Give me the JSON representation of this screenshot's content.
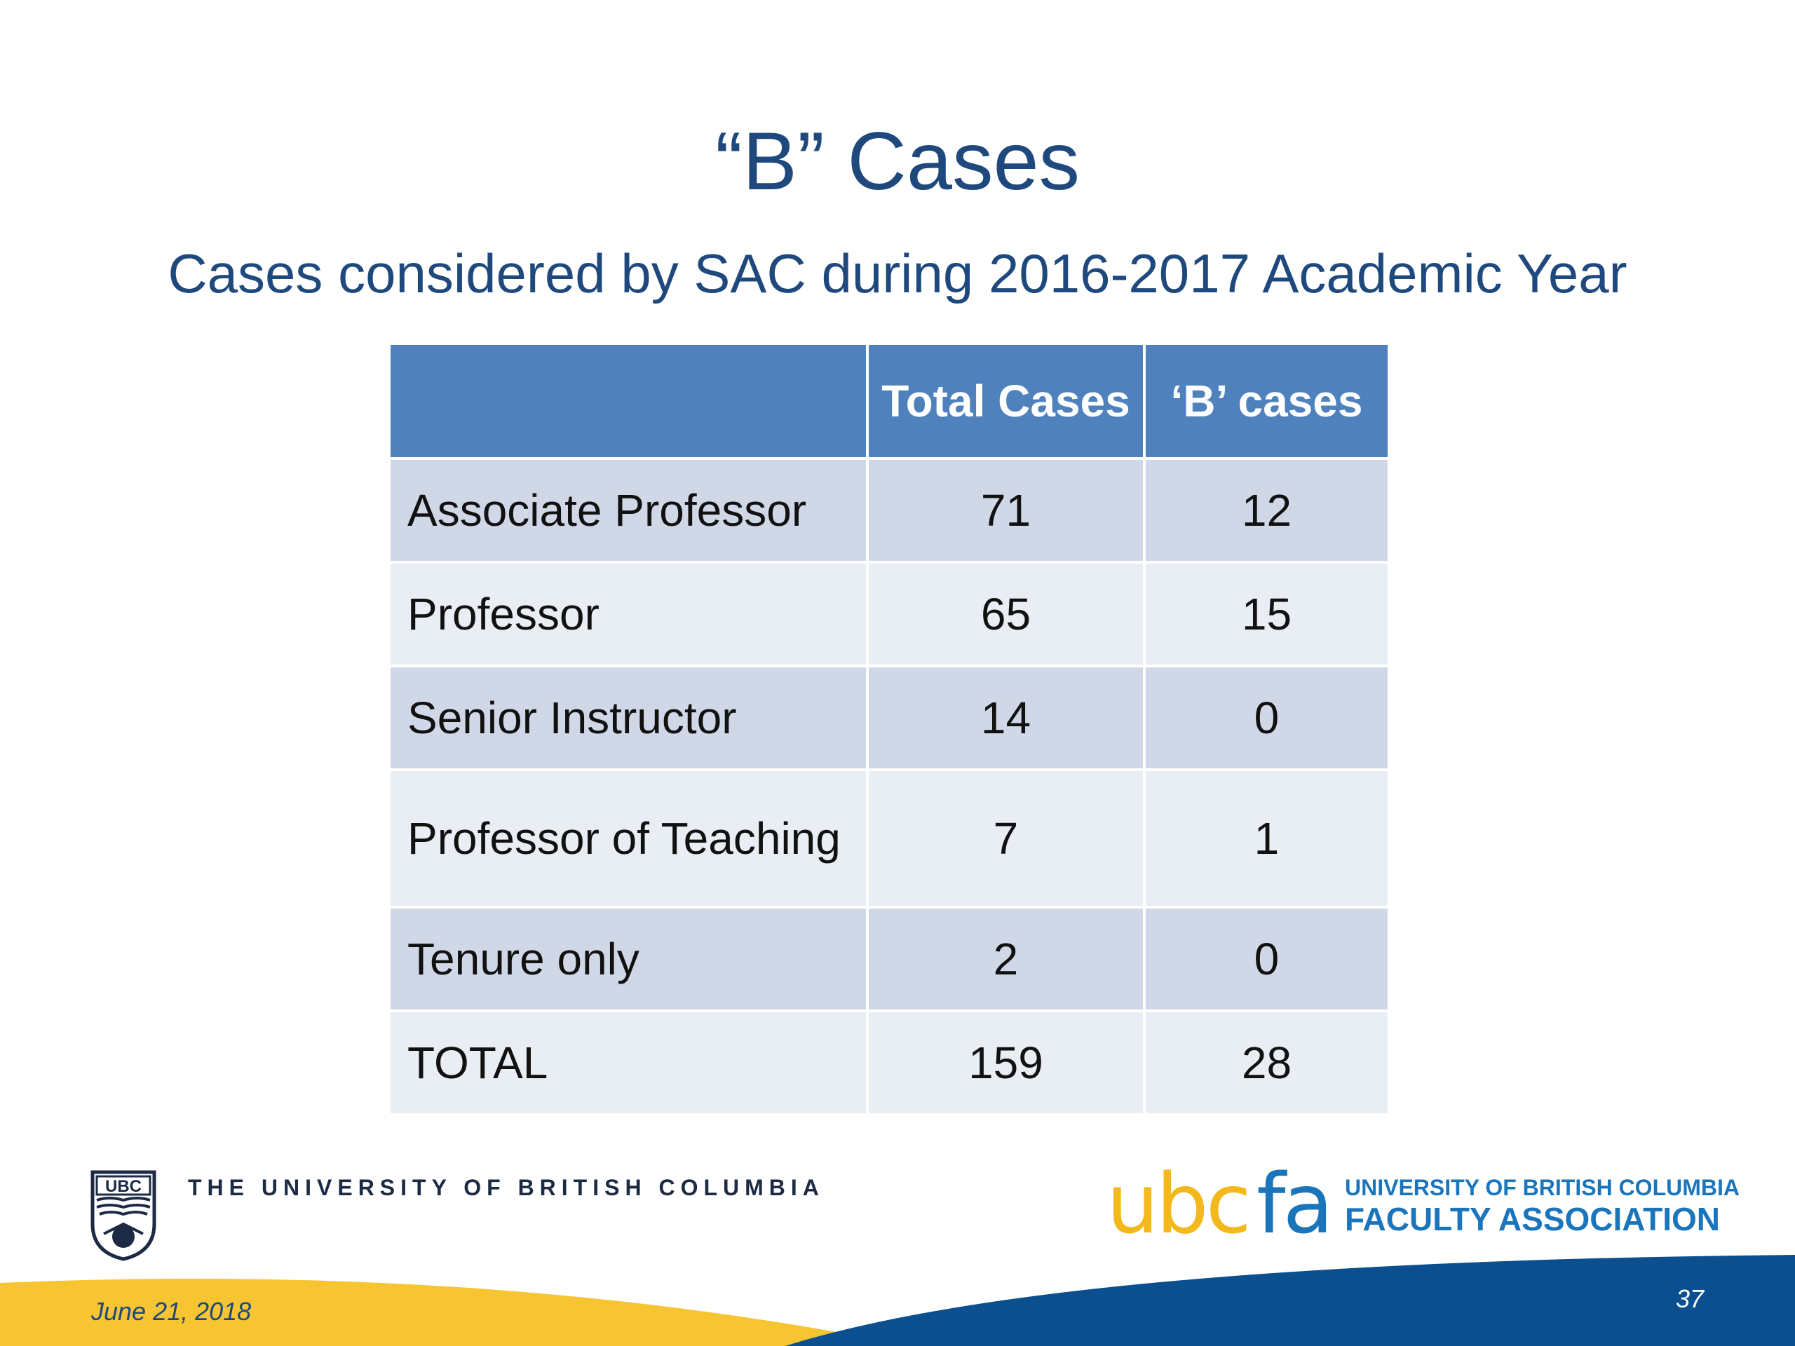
{
  "slide": {
    "title": "“B” Cases",
    "subtitle": "Cases considered by SAC during 2016-2017 Academic Year"
  },
  "table": {
    "headers": [
      "",
      "Total Cases",
      "‘B’ cases"
    ],
    "rows": [
      {
        "label": "Associate Professor",
        "total": "71",
        "b": "12"
      },
      {
        "label": "Professor",
        "total": "65",
        "b": "15"
      },
      {
        "label": "Senior Instructor",
        "total": "14",
        "b": "0"
      },
      {
        "label": "Professor of Teaching",
        "total": "7",
        "b": "1"
      },
      {
        "label": "Tenure only",
        "total": "2",
        "b": "0"
      },
      {
        "label": "TOTAL",
        "total": "159",
        "b": "28"
      }
    ]
  },
  "footer": {
    "ubc_crest_text": "UBC",
    "ubc_name": "THE UNIVERSITY OF BRITISH COLUMBIA",
    "fa_logo_text_ubc": "ubc",
    "fa_logo_text_fa": "fa",
    "fa_name_line1": "UNIVERSITY OF BRITISH COLUMBIA",
    "fa_name_line2": "FACULTY ASSOCIATION",
    "date": "June 21, 2018",
    "slide_number": "37"
  },
  "colors": {
    "title": "#1f497d",
    "table_header": "#4f81bd",
    "row_dark": "#d0d8e8",
    "row_light": "#e9edf4",
    "footer_yellow": "#f7c531",
    "footer_blue": "#0b4f8f",
    "fa_yellow": "#f2b81c",
    "fa_blue": "#1b75bb"
  },
  "icons": [
    "ubc-crest-icon",
    "ubcfa-logo-icon"
  ]
}
